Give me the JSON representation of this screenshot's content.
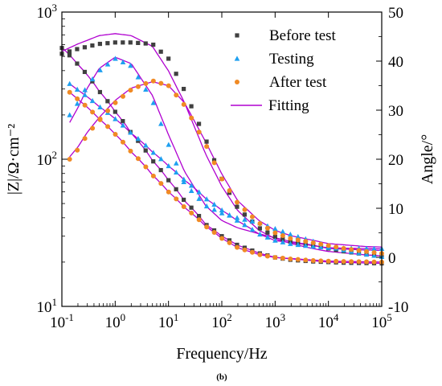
{
  "chart_data": {
    "type": "scatter",
    "caption": "(b)",
    "xlabel": "Frequency/Hz",
    "ylabel_left": "|Z|/Ω·cm⁻²",
    "ylabel_right": "Angle/°",
    "xscale": "log",
    "xlim": [
      0.1,
      100000
    ],
    "y_left_scale": "log",
    "y_left_lim": [
      10,
      1000
    ],
    "y_right_lim": [
      -10,
      50
    ],
    "grid": false,
    "legend_position": "top-right",
    "x_ticks": [
      {
        "value": 0.1,
        "base": "10",
        "exp": "-1"
      },
      {
        "value": 1,
        "base": "10",
        "exp": "0"
      },
      {
        "value": 10,
        "base": "10",
        "exp": "1"
      },
      {
        "value": 100,
        "base": "10",
        "exp": "2"
      },
      {
        "value": 1000,
        "base": "10",
        "exp": "3"
      },
      {
        "value": 10000,
        "base": "10",
        "exp": "4"
      },
      {
        "value": 100000,
        "base": "10",
        "exp": "5"
      }
    ],
    "y_left_ticks": [
      {
        "value": 10,
        "base": "10",
        "exp": "1"
      },
      {
        "value": 100,
        "base": "10",
        "exp": "2"
      },
      {
        "value": 1000,
        "base": "10",
        "exp": "3"
      }
    ],
    "y_right_ticks": [
      -10,
      0,
      10,
      20,
      30,
      40,
      50
    ],
    "series": [
      {
        "name": "Before test",
        "marker": "square",
        "color": "#404040",
        "impedance": {
          "x": [
            0.1,
            0.2,
            0.5,
            1,
            2,
            5,
            10,
            20,
            50,
            100,
            200,
            500,
            1000,
            2000,
            5000,
            10000,
            20000,
            50000,
            100000
          ],
          "y": [
            570,
            440,
            290,
            210,
            150,
            98,
            72,
            52,
            36,
            30,
            26,
            23,
            21.5,
            20.7,
            20.2,
            20,
            19.8,
            19.7,
            19.6
          ]
        },
        "phase": {
          "x": [
            0.1,
            0.2,
            0.5,
            1,
            2,
            5,
            10,
            20,
            50,
            100,
            200,
            500,
            1000,
            2000,
            5000,
            10000,
            20000,
            50000,
            100000
          ],
          "y": [
            41.5,
            42.5,
            43.5,
            43.8,
            43.8,
            43.5,
            40.5,
            34,
            24,
            16,
            10,
            6,
            4.2,
            3.2,
            2.4,
            1.8,
            1.2,
            0.6,
            0.1
          ]
        }
      },
      {
        "name": "Testing",
        "marker": "triangle",
        "color": "#1ea0f0",
        "impedance": {
          "x": [
            0.14,
            0.2,
            0.5,
            1,
            2,
            5,
            10,
            20,
            50,
            100,
            200,
            500,
            1000,
            2000,
            5000,
            10000,
            20000,
            50000,
            100000
          ],
          "y": [
            325,
            295,
            228,
            188,
            150,
            112,
            90,
            72,
            54,
            45,
            38,
            31,
            28,
            26.5,
            25.5,
            25,
            24.8,
            24.7,
            24.6
          ]
        },
        "phase": {
          "x": [
            0.14,
            0.2,
            0.3,
            0.5,
            1,
            2,
            5,
            10,
            20,
            50,
            100,
            200,
            500,
            1000,
            2000,
            5000,
            10000,
            20000,
            50000,
            100000
          ],
          "y": [
            29,
            31.5,
            35,
            38,
            40.5,
            39,
            32,
            23,
            15,
            10.5,
            9,
            8,
            7,
            5.8,
            4.6,
            3.3,
            2.2,
            1.4,
            0.6,
            0.1
          ]
        }
      },
      {
        "name": "After test",
        "marker": "circle",
        "color": "#f08a24",
        "impedance": {
          "x": [
            0.14,
            0.2,
            0.5,
            1,
            2,
            5,
            10,
            20,
            50,
            100,
            200,
            500,
            1000,
            2000,
            5000,
            10000,
            20000,
            50000,
            100000
          ],
          "y": [
            285,
            255,
            188,
            148,
            112,
            78,
            60,
            47,
            35,
            29,
            25,
            22.5,
            21.5,
            21,
            20.5,
            20.3,
            20.2,
            20.1,
            20
          ]
        },
        "phase": {
          "x": [
            0.14,
            0.2,
            0.3,
            0.5,
            1,
            2,
            5,
            10,
            20,
            50,
            100,
            200,
            500,
            1000,
            2000,
            5000,
            10000,
            20000,
            50000,
            100000
          ],
          "y": [
            20,
            22,
            25,
            28,
            31.5,
            34.2,
            36,
            35,
            31,
            23,
            16,
            11,
            7,
            5,
            3.8,
            3,
            2.4,
            1.8,
            1.2,
            0.8
          ]
        }
      },
      {
        "name": "Fitting",
        "marker": "line",
        "color": "#b000d0",
        "curves": [
          {
            "of": "Before test",
            "axis": "impedance",
            "x": [
              0.1,
              0.2,
              0.5,
              1,
              2,
              5,
              10,
              20,
              50,
              100,
              200,
              500,
              1000,
              10000,
              100000
            ],
            "y": [
              575,
              440,
              290,
              210,
              150,
              98,
              72,
              52,
              36,
              30,
              26,
              23,
              21.5,
              20,
              19.6
            ]
          },
          {
            "of": "Before test",
            "axis": "phase",
            "x": [
              0.1,
              0.2,
              0.5,
              1,
              2,
              5,
              10,
              20,
              50,
              100,
              200,
              500,
              1000,
              2000,
              5000,
              10000,
              50000,
              100000
            ],
            "y": [
              42,
              43.5,
              45.2,
              45.6,
              45.2,
              43,
              38,
              31.5,
              21,
              14.5,
              9.5,
              5.5,
              3.8,
              2.8,
              1.8,
              1.2,
              0.5,
              0.3
            ]
          },
          {
            "of": "Testing",
            "axis": "impedance",
            "x": [
              0.14,
              0.2,
              0.5,
              1,
              2,
              5,
              10,
              20,
              50,
              100,
              200,
              500,
              1000,
              10000,
              100000
            ],
            "y": [
              325,
              295,
              228,
              188,
              150,
              112,
              90,
              72,
              54,
              45,
              38,
              31,
              28,
              25,
              24.6
            ]
          },
          {
            "of": "Testing",
            "axis": "phase",
            "x": [
              0.14,
              0.2,
              0.3,
              0.5,
              1,
              2,
              5,
              10,
              20,
              50,
              100,
              200,
              500,
              1000,
              2000,
              5000,
              10000,
              50000,
              100000
            ],
            "y": [
              27.5,
              30.5,
              34.5,
              38.5,
              40.8,
              39.5,
              33,
              25,
              17.5,
              10.5,
              7.5,
              6,
              4.8,
              4,
              3.2,
              2.5,
              1.8,
              1.5,
              1.4
            ]
          },
          {
            "of": "After test",
            "axis": "impedance",
            "x": [
              0.14,
              0.2,
              0.5,
              1,
              2,
              5,
              10,
              20,
              50,
              100,
              200,
              500,
              1000,
              10000,
              100000
            ],
            "y": [
              285,
              255,
              188,
              148,
              112,
              78,
              60,
              47,
              35,
              29,
              25,
              22.5,
              21.5,
              20.3,
              20
            ]
          },
          {
            "of": "After test",
            "axis": "phase",
            "x": [
              0.14,
              0.2,
              0.3,
              0.5,
              1,
              2,
              5,
              10,
              20,
              50,
              100,
              200,
              500,
              1000,
              2000,
              5000,
              10000,
              50000,
              100000
            ],
            "y": [
              20.5,
              22.5,
              25.5,
              28.5,
              32,
              34.5,
              35.8,
              35,
              31.5,
              23.5,
              17,
              11.5,
              7.5,
              5.5,
              4.4,
              3.5,
              2.8,
              2.2,
              2.1
            ]
          }
        ]
      }
    ]
  }
}
